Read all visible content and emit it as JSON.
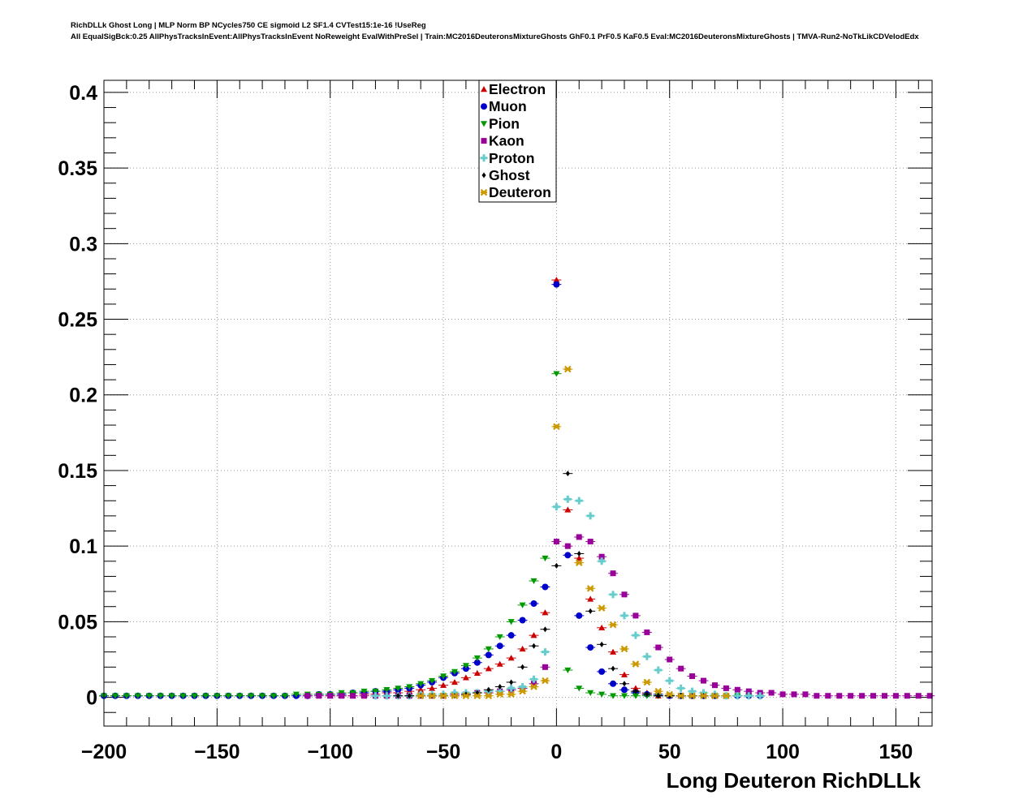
{
  "chart_data": {
    "type": "scatter",
    "title_line1": "RichDLLk Ghost Long | MLP Norm BP NCycles750 CE sigmoid L2 SF1.4 CVTest15:1e-16 !UseReg",
    "title_line2": "All EqualSigBck:0.25 AllPhysTracksInEvent:AllPhysTracksInEvent NoReweight EvalWithPreSel | Train:MC2016DeuteronsMixtureGhosts GhF0.1 PrF0.5 KaF0.5 Eval:MC2016DeuteronsMixtureGhosts | TMVA-Run2-NoTkLikCDVelodEdx",
    "xlabel": "Long Deuteron RichDLLk",
    "ylabel": "",
    "xlim": [
      -200,
      166
    ],
    "ylim": [
      -0.019,
      0.408
    ],
    "x_ticks": [
      -200,
      -150,
      -100,
      -50,
      0,
      50,
      100,
      150
    ],
    "x_tick_labels": [
      "−200",
      "−150",
      "−100",
      "−50",
      "0",
      "50",
      "100",
      "150"
    ],
    "y_ticks": [
      0,
      0.05,
      0.1,
      0.15,
      0.2,
      0.25,
      0.3,
      0.35,
      0.4
    ],
    "y_tick_labels": [
      "0",
      "0.05",
      "0.1",
      "0.15",
      "0.2",
      "0.25",
      "0.3",
      "0.35",
      "0.4"
    ],
    "grid": true,
    "legend_position": "top-center",
    "series": [
      {
        "name": "Electron",
        "color": "#cc0000",
        "marker": "triangle-up",
        "x": [
          -100,
          -95,
          -90,
          -85,
          -80,
          -75,
          -70,
          -65,
          -60,
          -55,
          -50,
          -45,
          -40,
          -35,
          -30,
          -25,
          -20,
          -15,
          -10,
          -5,
          0,
          5,
          10,
          15,
          20,
          25,
          30,
          35,
          40,
          45,
          50
        ],
        "y": [
          0.001,
          0.001,
          0.001,
          0.002,
          0.002,
          0.003,
          0.003,
          0.004,
          0.005,
          0.006,
          0.008,
          0.01,
          0.013,
          0.016,
          0.019,
          0.022,
          0.026,
          0.032,
          0.041,
          0.056,
          0.276,
          0.124,
          0.092,
          0.065,
          0.046,
          0.03,
          0.015,
          0.006,
          0.003,
          0.001,
          0.001
        ]
      },
      {
        "name": "Muon",
        "color": "#0000cc",
        "marker": "circle",
        "x": [
          -200,
          -195,
          -190,
          -185,
          -180,
          -175,
          -170,
          -165,
          -160,
          -155,
          -150,
          -145,
          -140,
          -135,
          -130,
          -125,
          -120,
          -115,
          -110,
          -105,
          -100,
          -95,
          -90,
          -85,
          -80,
          -75,
          -70,
          -65,
          -60,
          -55,
          -50,
          -45,
          -40,
          -35,
          -30,
          -25,
          -20,
          -15,
          -10,
          -5,
          0,
          5,
          10,
          15,
          20,
          25,
          30,
          35,
          40,
          45,
          50,
          55,
          60,
          65,
          70,
          75,
          80,
          85,
          90
        ],
        "y": [
          0.001,
          0.001,
          0.001,
          0.001,
          0.001,
          0.001,
          0.001,
          0.001,
          0.001,
          0.001,
          0.001,
          0.001,
          0.001,
          0.001,
          0.001,
          0.001,
          0.001,
          0.001,
          0.001,
          0.002,
          0.002,
          0.002,
          0.003,
          0.003,
          0.004,
          0.004,
          0.005,
          0.006,
          0.008,
          0.01,
          0.013,
          0.016,
          0.019,
          0.023,
          0.028,
          0.034,
          0.041,
          0.051,
          0.062,
          0.073,
          0.273,
          0.094,
          0.054,
          0.033,
          0.017,
          0.009,
          0.005,
          0.003,
          0.002,
          0.002,
          0.001,
          0.001,
          0.001,
          0.001,
          0.001,
          0.001,
          0.001,
          0.001,
          0.001
        ]
      },
      {
        "name": "Pion",
        "color": "#009900",
        "marker": "triangle-down",
        "x": [
          -200,
          -195,
          -190,
          -185,
          -180,
          -175,
          -170,
          -165,
          -160,
          -155,
          -150,
          -145,
          -140,
          -135,
          -130,
          -125,
          -120,
          -115,
          -110,
          -105,
          -100,
          -95,
          -90,
          -85,
          -80,
          -75,
          -70,
          -65,
          -60,
          -55,
          -50,
          -45,
          -40,
          -35,
          -30,
          -25,
          -20,
          -15,
          -10,
          -5,
          0,
          5,
          10,
          15,
          20,
          25,
          30,
          35,
          40,
          45,
          50,
          55,
          60,
          65,
          70,
          75,
          80,
          85
        ],
        "y": [
          0.001,
          0.001,
          0.001,
          0.001,
          0.001,
          0.001,
          0.001,
          0.001,
          0.001,
          0.001,
          0.001,
          0.001,
          0.001,
          0.001,
          0.001,
          0.001,
          0.001,
          0.002,
          0.002,
          0.002,
          0.002,
          0.003,
          0.003,
          0.004,
          0.004,
          0.005,
          0.006,
          0.007,
          0.009,
          0.011,
          0.014,
          0.017,
          0.021,
          0.026,
          0.032,
          0.04,
          0.05,
          0.061,
          0.077,
          0.092,
          0.214,
          0.018,
          0.006,
          0.003,
          0.002,
          0.001,
          0.001,
          0.001,
          0.001,
          0.001,
          0.001,
          0.001,
          0.001,
          0.001,
          0.001,
          0.001,
          0.001,
          0.001
        ]
      },
      {
        "name": "Kaon",
        "color": "#990099",
        "marker": "square",
        "x": [
          -110,
          -105,
          -100,
          -95,
          -90,
          -85,
          -80,
          -75,
          -70,
          -65,
          -60,
          -55,
          -50,
          -45,
          -40,
          -35,
          -30,
          -25,
          -20,
          -15,
          -10,
          -5,
          0,
          5,
          10,
          15,
          20,
          25,
          30,
          35,
          40,
          45,
          50,
          55,
          60,
          65,
          70,
          75,
          80,
          85,
          90,
          95,
          100,
          105,
          110,
          115,
          120,
          125,
          130,
          135,
          140,
          145,
          150,
          155,
          160,
          165
        ],
        "y": [
          0.001,
          0.001,
          0.001,
          0.001,
          0.001,
          0.001,
          0.001,
          0.001,
          0.001,
          0.001,
          0.001,
          0.001,
          0.001,
          0.002,
          0.002,
          0.003,
          0.003,
          0.004,
          0.005,
          0.006,
          0.009,
          0.02,
          0.103,
          0.1,
          0.106,
          0.103,
          0.093,
          0.082,
          0.068,
          0.054,
          0.043,
          0.033,
          0.025,
          0.019,
          0.014,
          0.011,
          0.008,
          0.006,
          0.005,
          0.004,
          0.003,
          0.003,
          0.002,
          0.002,
          0.002,
          0.001,
          0.001,
          0.001,
          0.001,
          0.001,
          0.001,
          0.001,
          0.001,
          0.001,
          0.001,
          0.001
        ]
      },
      {
        "name": "Proton",
        "color": "#66cccc",
        "marker": "cross",
        "x": [
          -80,
          -75,
          -70,
          -65,
          -60,
          -55,
          -50,
          -45,
          -40,
          -35,
          -30,
          -25,
          -20,
          -15,
          -10,
          -5,
          0,
          5,
          10,
          15,
          20,
          25,
          30,
          35,
          40,
          45,
          50,
          55,
          60,
          65,
          70,
          75,
          80,
          85,
          90
        ],
        "y": [
          0.001,
          0.001,
          0.001,
          0.001,
          0.002,
          0.002,
          0.002,
          0.003,
          0.003,
          0.003,
          0.004,
          0.004,
          0.006,
          0.007,
          0.012,
          0.03,
          0.126,
          0.131,
          0.13,
          0.12,
          0.09,
          0.068,
          0.054,
          0.041,
          0.027,
          0.018,
          0.011,
          0.006,
          0.004,
          0.003,
          0.002,
          0.001,
          0.001,
          0.001,
          0.001
        ]
      },
      {
        "name": "Ghost",
        "color": "#000000",
        "marker": "diamond",
        "x": [
          -70,
          -65,
          -60,
          -55,
          -50,
          -45,
          -40,
          -35,
          -30,
          -25,
          -20,
          -15,
          -10,
          -5,
          0,
          5,
          10,
          15,
          20,
          25,
          30,
          35,
          40,
          45,
          50,
          55,
          60,
          65,
          70
        ],
        "y": [
          0.001,
          0.001,
          0.001,
          0.001,
          0.001,
          0.001,
          0.002,
          0.003,
          0.005,
          0.007,
          0.01,
          0.02,
          0.034,
          0.045,
          0.087,
          0.148,
          0.095,
          0.057,
          0.035,
          0.019,
          0.009,
          0.004,
          0.002,
          0.001,
          0.001,
          0.001,
          0.001,
          0.001,
          0.001
        ]
      },
      {
        "name": "Deuteron",
        "color": "#cc9900",
        "marker": "star",
        "x": [
          -60,
          -55,
          -50,
          -45,
          -40,
          -35,
          -30,
          -25,
          -20,
          -15,
          -10,
          -5,
          0,
          5,
          10,
          15,
          20,
          25,
          30,
          35,
          40,
          45,
          50,
          55,
          60,
          65,
          70,
          75
        ],
        "y": [
          0.001,
          0.001,
          0.001,
          0.001,
          0.001,
          0.001,
          0.001,
          0.002,
          0.002,
          0.004,
          0.007,
          0.011,
          0.179,
          0.217,
          0.089,
          0.072,
          0.059,
          0.048,
          0.032,
          0.022,
          0.01,
          0.004,
          0.002,
          0.001,
          0.001,
          0.001,
          0.001,
          0.001
        ]
      }
    ]
  }
}
